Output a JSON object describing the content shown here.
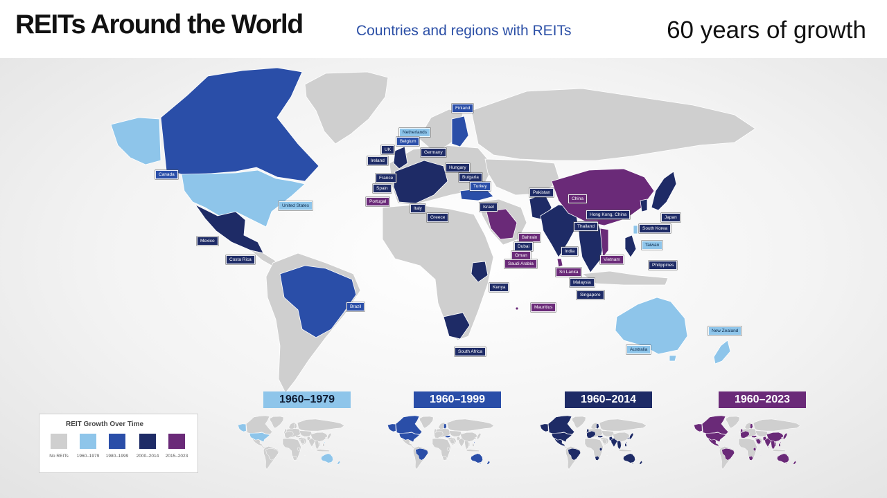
{
  "header": {
    "title": "REITs Around the World",
    "subtitle": "Countries and regions with REITs",
    "tagline": "60 years of growth"
  },
  "colors": {
    "no_reits": "#cfcfcf",
    "p1960_1979": "#8ec5ea",
    "p1980_1999": "#2a4ea8",
    "p2000_2014": "#1e2b66",
    "p2015_2023": "#6a2a78",
    "title_blue": "#2b4fa6"
  },
  "labels": [
    {
      "name": "Finland",
      "period": "p2"
    },
    {
      "name": "Netherlands",
      "period": "p1"
    },
    {
      "name": "Belgium",
      "period": "p2"
    },
    {
      "name": "UK",
      "period": "p3"
    },
    {
      "name": "Germany",
      "period": "p3"
    },
    {
      "name": "Ireland",
      "period": "p3"
    },
    {
      "name": "Hungary",
      "period": "p3"
    },
    {
      "name": "Bulgaria",
      "period": "p3"
    },
    {
      "name": "France",
      "period": "p3"
    },
    {
      "name": "Spain",
      "period": "p3"
    },
    {
      "name": "Turkey",
      "period": "p2"
    },
    {
      "name": "Portugal",
      "period": "p4"
    },
    {
      "name": "Israel",
      "period": "p3"
    },
    {
      "name": "Italy",
      "period": "p3"
    },
    {
      "name": "Greece",
      "period": "p3"
    },
    {
      "name": "Canada",
      "period": "p2"
    },
    {
      "name": "United States",
      "period": "p1"
    },
    {
      "name": "Mexico",
      "period": "p3"
    },
    {
      "name": "Costa Rica",
      "period": "p3"
    },
    {
      "name": "Brazil",
      "period": "p2"
    },
    {
      "name": "Pakistan",
      "period": "p3"
    },
    {
      "name": "China",
      "period": "p4"
    },
    {
      "name": "Hong Kong, China",
      "period": "p3"
    },
    {
      "name": "Japan",
      "period": "p3"
    },
    {
      "name": "South Korea",
      "period": "p3"
    },
    {
      "name": "Thailand",
      "period": "p3"
    },
    {
      "name": "Taiwan",
      "period": "p1"
    },
    {
      "name": "India",
      "period": "p3"
    },
    {
      "name": "Bahrain",
      "period": "p4"
    },
    {
      "name": "Dubai",
      "period": "p3"
    },
    {
      "name": "Oman",
      "period": "p4"
    },
    {
      "name": "Saudi Arabia",
      "period": "p4"
    },
    {
      "name": "Vietnam",
      "period": "p4"
    },
    {
      "name": "Philippines",
      "period": "p3"
    },
    {
      "name": "Sri Lanka",
      "period": "p4"
    },
    {
      "name": "Malaysia",
      "period": "p3"
    },
    {
      "name": "Singapore",
      "period": "p3"
    },
    {
      "name": "Kenya",
      "period": "p3"
    },
    {
      "name": "Mauritius",
      "period": "p4"
    },
    {
      "name": "South Africa",
      "period": "p3"
    },
    {
      "name": "Australia",
      "period": "p1"
    },
    {
      "name": "New Zealand",
      "period": "p1"
    }
  ],
  "periods": [
    "1960–1979",
    "1960–1999",
    "1960–2014",
    "1960–2023"
  ],
  "legend": {
    "title": "REIT Growth Over Time",
    "items": [
      {
        "label": "No REITs",
        "color": "#cfcfcf"
      },
      {
        "label": "1960–1979",
        "color": "#8ec5ea"
      },
      {
        "label": "1980–1999",
        "color": "#2a4ea8"
      },
      {
        "label": "2000–2014",
        "color": "#1e2b66"
      },
      {
        "label": "2015–2023",
        "color": "#6a2a78"
      }
    ]
  }
}
